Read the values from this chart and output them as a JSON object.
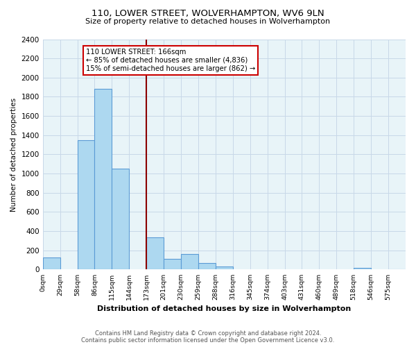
{
  "title": "110, LOWER STREET, WOLVERHAMPTON, WV6 9LN",
  "subtitle": "Size of property relative to detached houses in Wolverhampton",
  "xlabel": "Distribution of detached houses by size in Wolverhampton",
  "ylabel": "Number of detached properties",
  "footer_line1": "Contains HM Land Registry data © Crown copyright and database right 2024.",
  "footer_line2": "Contains public sector information licensed under the Open Government Licence v3.0.",
  "bin_labels": [
    "0sqm",
    "29sqm",
    "58sqm",
    "86sqm",
    "115sqm",
    "144sqm",
    "173sqm",
    "201sqm",
    "230sqm",
    "259sqm",
    "288sqm",
    "316sqm",
    "345sqm",
    "374sqm",
    "403sqm",
    "431sqm",
    "460sqm",
    "489sqm",
    "518sqm",
    "546sqm",
    "575sqm"
  ],
  "bar_heights": [
    125,
    0,
    1350,
    1880,
    1050,
    0,
    335,
    110,
    160,
    65,
    30,
    0,
    0,
    0,
    0,
    0,
    0,
    0,
    15,
    0,
    5
  ],
  "bar_color": "#add8f0",
  "bar_edge_color": "#5b9bd5",
  "grid_color": "#c8d8e8",
  "background_color": "#e8f4f8",
  "vline_bin": 6,
  "vline_color": "#8b0000",
  "annotation_title": "110 LOWER STREET: 166sqm",
  "annotation_line1": "← 85% of detached houses are smaller (4,836)",
  "annotation_line2": "15% of semi-detached houses are larger (862) →",
  "ylim": [
    0,
    2400
  ],
  "yticks": [
    0,
    200,
    400,
    600,
    800,
    1000,
    1200,
    1400,
    1600,
    1800,
    2000,
    2200,
    2400
  ]
}
